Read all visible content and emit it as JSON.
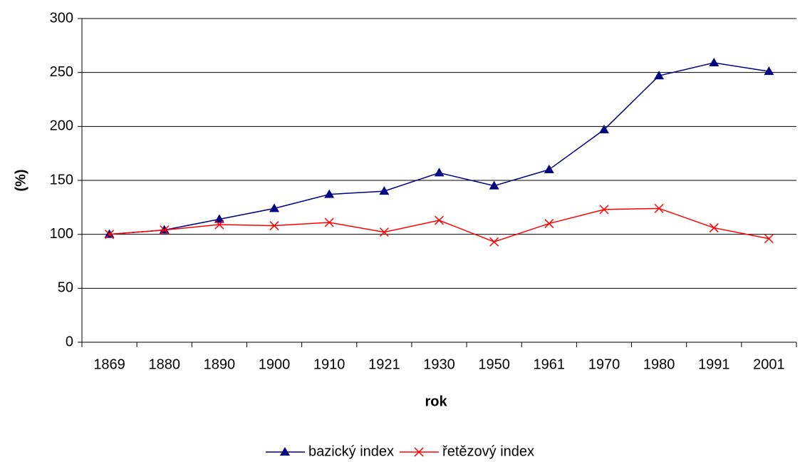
{
  "chart_data": {
    "type": "line",
    "categories": [
      "1869",
      "1880",
      "1890",
      "1900",
      "1910",
      "1921",
      "1930",
      "1950",
      "1961",
      "1970",
      "1980",
      "1991",
      "2001"
    ],
    "series": [
      {
        "name": "bazický index",
        "color": "#000080",
        "marker": "triangle",
        "values": [
          100,
          104,
          114,
          124,
          137,
          140,
          157,
          145,
          160,
          197,
          247,
          259,
          251
        ]
      },
      {
        "name": "řetězový index",
        "color": "#ff0000",
        "marker": "x",
        "values": [
          100,
          104,
          109,
          108,
          111,
          102,
          113,
          93,
          110,
          123,
          124,
          106,
          96
        ]
      }
    ],
    "xlabel": "rok",
    "ylabel": "(%)",
    "ylim": [
      0,
      300
    ],
    "yticks": [
      0,
      50,
      100,
      150,
      200,
      250,
      300
    ],
    "grid": true,
    "legend": "bottom"
  }
}
